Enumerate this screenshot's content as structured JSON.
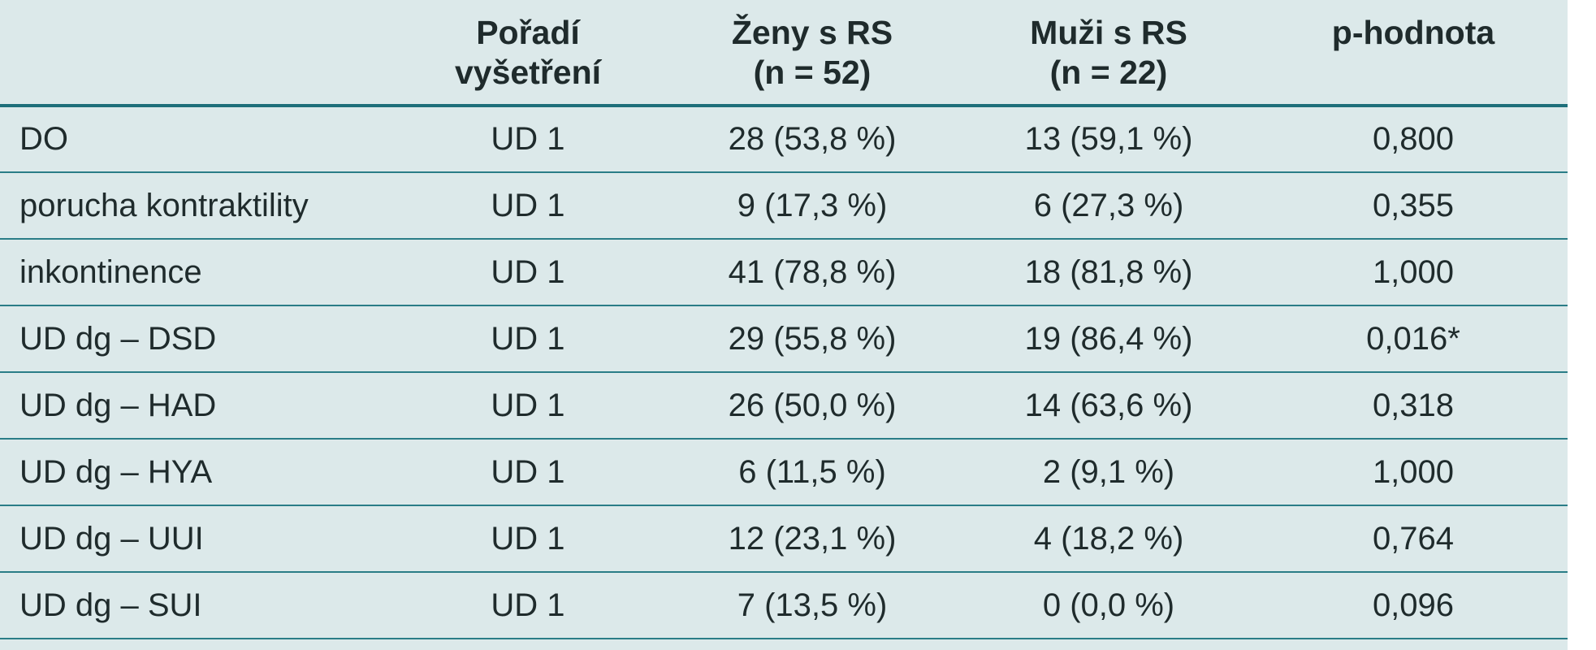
{
  "table": {
    "headers": [
      {
        "line1": "",
        "line2": ""
      },
      {
        "line1": "Pořadí",
        "line2": "vyšetření"
      },
      {
        "line1": "Ženy s RS",
        "line2": "(n = 52)"
      },
      {
        "line1": "Muži s RS",
        "line2": "(n = 22)"
      },
      {
        "line1": "p-hodnota",
        "line2": ""
      }
    ],
    "rows": [
      {
        "label": "DO",
        "order": "UD 1",
        "women": "28 (53,8 %)",
        "men": "13 (59,1 %)",
        "p": "0,800"
      },
      {
        "label": "porucha kontraktility",
        "order": "UD 1",
        "women": "9 (17,3 %)",
        "men": "6 (27,3 %)",
        "p": "0,355"
      },
      {
        "label": "inkontinence",
        "order": "UD 1",
        "women": "41 (78,8 %)",
        "men": "18 (81,8 %)",
        "p": "1,000"
      },
      {
        "label": "UD dg – DSD",
        "order": "UD 1",
        "women": "29 (55,8 %)",
        "men": "19 (86,4 %)",
        "p": "0,016*"
      },
      {
        "label": "UD dg – HAD",
        "order": "UD 1",
        "women": "26 (50,0 %)",
        "men": "14 (63,6 %)",
        "p": "0,318"
      },
      {
        "label": "UD dg – HYA",
        "order": "UD 1",
        "women": "6 (11,5 %)",
        "men": "2 (9,1 %)",
        "p": "1,000"
      },
      {
        "label": "UD dg – UUI",
        "order": "UD 1",
        "women": "12 (23,1 %)",
        "men": "4 (18,2 %)",
        "p": "0,764"
      },
      {
        "label": "UD dg – SUI",
        "order": "UD 1",
        "women": "7 (13,5 %)",
        "men": "0 (0,0 %)",
        "p": "0,096"
      }
    ]
  }
}
